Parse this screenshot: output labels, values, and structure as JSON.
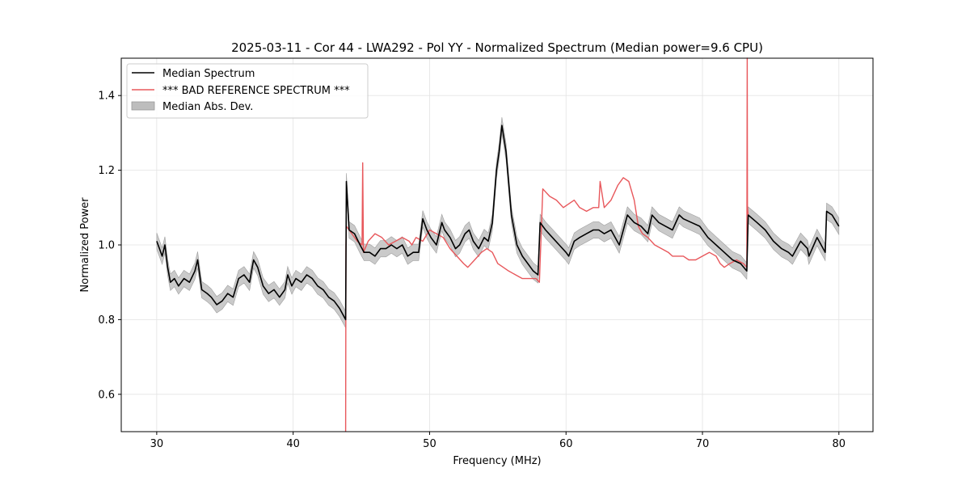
{
  "chart_data": {
    "type": "line",
    "title": "2025-03-11 - Cor 44 - LWA292 - Pol YY - Normalized Spectrum (Median power=9.6 CPU)",
    "xlabel": "Frequency (MHz)",
    "ylabel": "Normalized Power",
    "xlim": [
      27.4,
      82.5
    ],
    "ylim": [
      0.5,
      1.5
    ],
    "xticks": [
      30,
      40,
      50,
      60,
      70,
      80
    ],
    "yticks": [
      0.6,
      0.8,
      1.0,
      1.2,
      1.4
    ],
    "xtick_labels": [
      "30",
      "40",
      "50",
      "60",
      "70",
      "80"
    ],
    "ytick_labels": [
      "0.6",
      "0.8",
      "1.0",
      "1.2",
      "1.4"
    ],
    "grid": true,
    "legend_position": "top-left",
    "legend": [
      {
        "label": "Median Spectrum",
        "kind": "line",
        "color": "#000000"
      },
      {
        "label": "*** BAD REFERENCE SPECTRUM ***",
        "kind": "line",
        "color": "#e8585c"
      },
      {
        "label": "Median Abs. Dev.",
        "kind": "band",
        "color": "#bdbdbd"
      }
    ],
    "series": [
      {
        "name": "Median Spectrum",
        "color": "#000000",
        "x": [
          30.0,
          30.2,
          30.4,
          30.6,
          30.8,
          31.0,
          31.3,
          31.6,
          32.0,
          32.4,
          32.8,
          33.0,
          33.3,
          33.7,
          34.0,
          34.4,
          34.8,
          35.2,
          35.6,
          36.0,
          36.4,
          36.8,
          37.1,
          37.4,
          37.8,
          38.2,
          38.6,
          39.0,
          39.4,
          39.6,
          39.9,
          40.2,
          40.6,
          41.0,
          41.4,
          41.8,
          42.2,
          42.6,
          43.0,
          43.4,
          43.7,
          43.85,
          43.9,
          44.1,
          44.5,
          44.9,
          45.2,
          45.6,
          46.0,
          46.4,
          46.8,
          47.2,
          47.6,
          48.0,
          48.4,
          48.8,
          49.2,
          49.5,
          49.8,
          50.1,
          50.5,
          50.9,
          51.1,
          51.5,
          51.9,
          52.2,
          52.6,
          52.9,
          53.2,
          53.6,
          54.0,
          54.3,
          54.6,
          54.9,
          55.1,
          55.3,
          55.6,
          56.0,
          56.4,
          56.8,
          57.2,
          57.6,
          57.95,
          58.1,
          58.5,
          59.0,
          59.5,
          60.0,
          60.2,
          60.6,
          61.0,
          61.5,
          62.0,
          62.4,
          62.8,
          63.3,
          63.6,
          63.9,
          64.5,
          65.0,
          65.5,
          66.0,
          66.3,
          66.8,
          67.3,
          67.8,
          68.3,
          68.6,
          69.2,
          69.8,
          70.4,
          71.0,
          71.6,
          72.2,
          72.8,
          73.25,
          73.35,
          74.0,
          74.6,
          75.2,
          75.8,
          76.3,
          76.6,
          77.2,
          77.7,
          77.8,
          78.4,
          79.0,
          79.1,
          79.5,
          80.0
        ],
        "values": [
          1.01,
          0.99,
          0.97,
          1.0,
          0.94,
          0.9,
          0.91,
          0.89,
          0.91,
          0.9,
          0.93,
          0.96,
          0.88,
          0.87,
          0.86,
          0.84,
          0.85,
          0.87,
          0.86,
          0.91,
          0.92,
          0.9,
          0.96,
          0.94,
          0.89,
          0.87,
          0.88,
          0.86,
          0.88,
          0.92,
          0.89,
          0.91,
          0.9,
          0.92,
          0.91,
          0.89,
          0.88,
          0.86,
          0.85,
          0.83,
          0.81,
          0.8,
          1.17,
          1.04,
          1.03,
          1.0,
          0.98,
          0.98,
          0.97,
          0.99,
          0.99,
          1.0,
          0.99,
          1.0,
          0.97,
          0.98,
          0.98,
          1.07,
          1.04,
          1.02,
          1.0,
          1.06,
          1.04,
          1.02,
          0.99,
          1.0,
          1.03,
          1.04,
          1.01,
          0.99,
          1.02,
          1.01,
          1.06,
          1.2,
          1.25,
          1.32,
          1.25,
          1.08,
          1.0,
          0.97,
          0.95,
          0.93,
          0.92,
          1.06,
          1.04,
          1.02,
          1.0,
          0.98,
          0.97,
          1.01,
          1.02,
          1.03,
          1.04,
          1.04,
          1.03,
          1.04,
          1.02,
          1.0,
          1.08,
          1.06,
          1.05,
          1.03,
          1.08,
          1.06,
          1.05,
          1.04,
          1.08,
          1.07,
          1.06,
          1.05,
          1.02,
          1.0,
          0.98,
          0.96,
          0.95,
          0.93,
          1.08,
          1.06,
          1.04,
          1.01,
          0.99,
          0.98,
          0.97,
          1.01,
          0.99,
          0.97,
          1.02,
          0.98,
          1.09,
          1.08,
          1.05
        ]
      },
      {
        "name": "*** BAD REFERENCE SPECTRUM ***",
        "color": "#e8585c",
        "x": [
          43.85,
          43.87,
          43.9,
          44.3,
          44.7,
          45.05,
          45.1,
          45.15,
          45.5,
          46.0,
          46.5,
          47.0,
          47.5,
          48.0,
          48.5,
          48.7,
          49.0,
          49.5,
          50.0,
          50.5,
          51.0,
          51.5,
          52.0,
          52.5,
          52.8,
          53.3,
          53.8,
          54.2,
          54.6,
          55.0,
          55.4,
          55.8,
          56.3,
          56.8,
          57.3,
          57.8,
          58.05,
          58.3,
          58.8,
          59.3,
          59.8,
          60.2,
          60.6,
          61.0,
          61.5,
          62.0,
          62.4,
          62.5,
          62.8,
          63.3,
          63.8,
          64.2,
          64.6,
          65.0,
          65.3,
          65.6,
          66.0,
          66.5,
          67.0,
          67.5,
          67.8,
          68.2,
          68.6,
          69.0,
          69.5,
          70.0,
          70.5,
          71.0,
          71.3,
          71.6,
          72.0,
          72.5,
          73.0,
          73.25,
          73.28,
          73.3,
          73.35
        ],
        "values": [
          0.5,
          1.0,
          1.05,
          1.03,
          1.01,
          1.0,
          1.22,
          0.98,
          1.01,
          1.03,
          1.02,
          1.0,
          1.01,
          1.02,
          1.01,
          1.0,
          1.02,
          1.01,
          1.04,
          1.03,
          1.02,
          0.99,
          0.97,
          0.95,
          0.94,
          0.96,
          0.98,
          0.99,
          0.98,
          0.95,
          0.94,
          0.93,
          0.92,
          0.91,
          0.91,
          0.91,
          0.9,
          1.15,
          1.13,
          1.12,
          1.1,
          1.11,
          1.12,
          1.1,
          1.09,
          1.1,
          1.1,
          1.17,
          1.1,
          1.12,
          1.16,
          1.18,
          1.17,
          1.12,
          1.05,
          1.03,
          1.02,
          1.0,
          0.99,
          0.98,
          0.97,
          0.97,
          0.97,
          0.96,
          0.96,
          0.97,
          0.98,
          0.97,
          0.95,
          0.94,
          0.95,
          0.96,
          0.95,
          0.94,
          1.5,
          1.1,
          1.08
        ]
      }
    ],
    "band": {
      "name": "Median Abs. Dev.",
      "color": "#bdbdbd",
      "of_series": "Median Spectrum",
      "spread": 0.022
    }
  }
}
